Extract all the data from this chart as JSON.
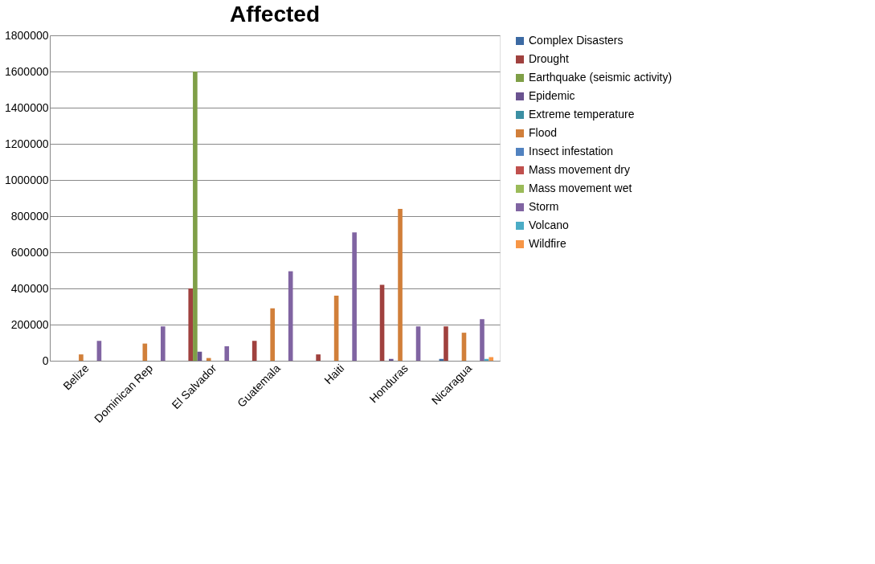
{
  "chart_data": {
    "type": "bar",
    "title": "Affected",
    "categories": [
      "Belize",
      "Dominican Rep",
      "El Salvador",
      "Guatemala",
      "Haiti",
      "Honduras",
      "Nicaragua"
    ],
    "series": [
      {
        "name": "Complex Disasters",
        "color": "#3c6aa3",
        "values": [
          null,
          null,
          null,
          null,
          null,
          null,
          10000
        ]
      },
      {
        "name": "Drought",
        "color": "#a0413e",
        "values": [
          null,
          null,
          400000,
          110000,
          35000,
          420000,
          190000
        ]
      },
      {
        "name": "Earthquake (seismic activity)",
        "color": "#7f9f47",
        "values": [
          null,
          null,
          1600000,
          null,
          null,
          null,
          null
        ]
      },
      {
        "name": "Epidemic",
        "color": "#6a5390",
        "values": [
          null,
          null,
          50000,
          null,
          null,
          10000,
          null
        ]
      },
      {
        "name": "Extreme temperature",
        "color": "#3b8fa3",
        "values": [
          null,
          null,
          null,
          null,
          null,
          null,
          null
        ]
      },
      {
        "name": "Flood",
        "color": "#d17f3a",
        "values": [
          35000,
          95000,
          15000,
          290000,
          360000,
          840000,
          155000
        ]
      },
      {
        "name": "Insect infestation",
        "color": "#5182c0",
        "values": [
          null,
          null,
          null,
          null,
          null,
          null,
          null
        ]
      },
      {
        "name": "Mass movement dry",
        "color": "#c0504d",
        "values": [
          null,
          null,
          null,
          null,
          null,
          null,
          null
        ]
      },
      {
        "name": "Mass movement wet",
        "color": "#9bbb59",
        "values": [
          null,
          null,
          null,
          null,
          null,
          null,
          null
        ]
      },
      {
        "name": "Storm",
        "color": "#8064a2",
        "values": [
          110000,
          190000,
          80000,
          495000,
          710000,
          190000,
          230000
        ]
      },
      {
        "name": "Volcano",
        "color": "#4bacc6",
        "values": [
          null,
          null,
          null,
          null,
          null,
          null,
          10000
        ]
      },
      {
        "name": "Wildfire",
        "color": "#f79646",
        "values": [
          null,
          null,
          null,
          null,
          null,
          null,
          20000
        ]
      }
    ],
    "ylim": [
      0,
      1800000
    ],
    "yticks": [
      0,
      200000,
      400000,
      600000,
      800000,
      1000000,
      1200000,
      1400000,
      1600000,
      1800000
    ],
    "grid": "y",
    "legend": "right"
  }
}
